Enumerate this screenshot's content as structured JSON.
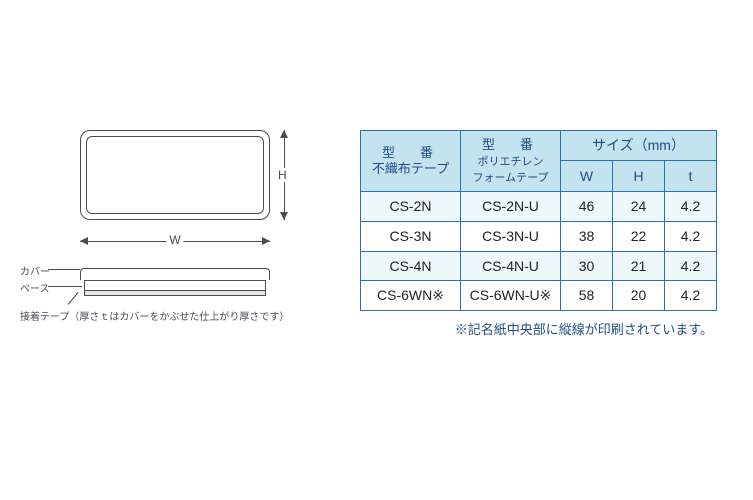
{
  "diagram": {
    "labels": {
      "w": "W",
      "h": "H",
      "cover": "カバー",
      "base": "ベース",
      "tape": "接着テープ（厚さｔはカバーをかぶせた仕上がり厚さです）"
    },
    "colors": {
      "line": "#4a4a55"
    }
  },
  "table": {
    "headers": {
      "col1_top": "型　番",
      "col1_sub": "不織布テープ",
      "col2_top": "型　番",
      "col2_sub": "ポリエチレン\nフォームテープ",
      "size": "サイズ（mm）",
      "w": "W",
      "h": "H",
      "t": "t"
    },
    "rows": [
      {
        "a": "CS-2N",
        "b": "CS-2N-U",
        "w": "46",
        "h": "24",
        "t": "4.2"
      },
      {
        "a": "CS-3N",
        "b": "CS-3N-U",
        "w": "38",
        "h": "22",
        "t": "4.2"
      },
      {
        "a": "CS-4N",
        "b": "CS-4N-U",
        "w": "30",
        "h": "21",
        "t": "4.2"
      },
      {
        "a": "CS-6WN※",
        "b": "CS-6WN-U※",
        "w": "58",
        "h": "20",
        "t": "4.2"
      }
    ],
    "footnote": "※記名紙中央部に縦線が印刷されています。",
    "colors": {
      "border": "#2a6fb5",
      "header_bg": "#c3e4ef",
      "row_alt_bg": "#eef7fa",
      "header_text": "#1f4c87"
    }
  }
}
